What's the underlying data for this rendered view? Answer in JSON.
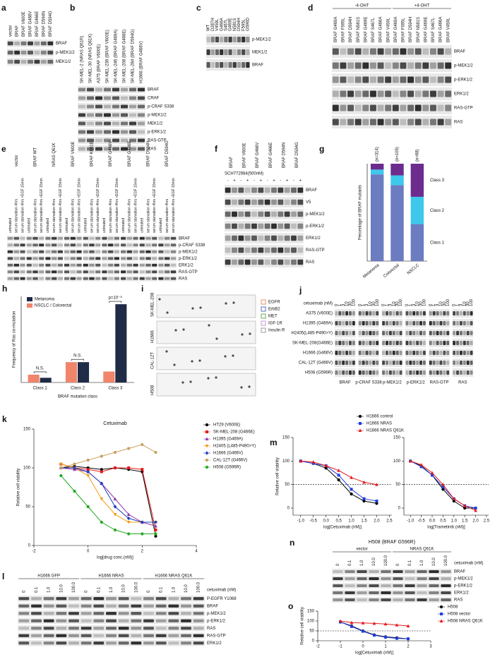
{
  "panels": {
    "a": {
      "letter": "a",
      "lanes": [
        "vector",
        "BRAF",
        "BRAF V600E",
        "BRAF G466V",
        "BRAF G466E",
        "BRAF D594N",
        "BRAF D594G"
      ],
      "rows": [
        "BRAF",
        "p-MEK1/2",
        "MEK1/2"
      ]
    },
    "b": {
      "letter": "b",
      "lanes": [
        "SK-MEL-2 (NRAS Q61R)",
        "SK-MEL-30 (NRAS Q61K)",
        "A375 (BRAF V600E)",
        "SK-MEL-239 (BRAF V600E)",
        "SK-MEL-246 (BRAF G469A)",
        "SK-MEL-208 (BRAF G466E)",
        "SK-MEL-284 (BRAF D594G)",
        "H1666 (BRAF G466V)"
      ],
      "rows": [
        "BRAF",
        "CRAF",
        "p-CRAF S338",
        "p-MEK1/2",
        "MEK1/2",
        "p-ERK1/2",
        "RAS-GTP",
        "RAS"
      ]
    },
    "c": {
      "letter": "c",
      "lanes": [
        "WT",
        "D287H",
        "V459L",
        "G466A",
        "S467L",
        "G469E",
        "N581S",
        "D594H",
        "F595L",
        "G596D"
      ],
      "rows": [
        "p-MEK1/2",
        "MEK1/2",
        "BRAF"
      ]
    },
    "d": {
      "letter": "d",
      "groups": [
        {
          "name": "-4-OHT",
          "lanes": [
            "BRAF G469A",
            "BRAF F595L",
            "BRAF D594H",
            "BRAF N581S",
            "BRAF G469E",
            "BRAF S467L",
            "BRAF G466A",
            "BRAF V459L"
          ]
        },
        {
          "name": "+4-OHT",
          "lanes": [
            "BRAF G469A",
            "BRAF F595L",
            "BRAF D594H",
            "BRAF N581S",
            "BRAF G469E",
            "BRAF S467L",
            "BRAF G466A",
            "BRAF V459L"
          ]
        }
      ],
      "rows": [
        "BRAF",
        "p-MEK1/2",
        "p-ERK1/2",
        "ERK1/2",
        "RAS-GTP",
        "RAS"
      ]
    },
    "e": {
      "letter": "e",
      "groups": [
        {
          "name": "vector",
          "lanes": [
            "untreated",
            "serum starvation 4hrs",
            "serum starvation 4hrs +EGF 15min"
          ]
        },
        {
          "name": "BRAF WT",
          "lanes": [
            "untreated",
            "serum starvation 4hrs",
            "serum starvation 4hrs +EGF 15min"
          ]
        },
        {
          "name": "NRAS Q61K",
          "lanes": [
            "untreated",
            "serum starvation 4hrs",
            "serum starvation 4hrs +EGF 15min"
          ]
        },
        {
          "name": "BRAF V600E",
          "lanes": [
            "untreated",
            "serum starvation 4hrs",
            "serum starvation 4hrs +EGF 15min"
          ]
        },
        {
          "name": "BRAF K601E",
          "lanes": [
            "untreated",
            "serum starvation 4hrs",
            "serum starvation 4hrs +EGF 15min"
          ]
        },
        {
          "name": "BRAF G466V",
          "lanes": [
            "untreated",
            "serum starvation 4hrs",
            "serum starvation 4hrs +EGF 15min"
          ]
        },
        {
          "name": "BRAF G466E",
          "lanes": [
            "untreated",
            "serum starvation 4hrs",
            "serum starvation 4hrs +EGF 15min"
          ]
        },
        {
          "name": "BRAF D594N",
          "lanes": [
            "untreated",
            "serum starvation 4hrs",
            "serum starvation 4hrs +EGF 15min"
          ]
        },
        {
          "name": "BRAF D594G",
          "lanes": [
            "untreated",
            "serum starvation 4hrs",
            "serum starvation 4hrs +EGF 15min"
          ]
        }
      ],
      "rows": [
        "BRAF",
        "p-CRAF S338",
        "p-MEK1/2",
        "p-ERK1/2",
        "ERK1/2",
        "RAS-GTP",
        "RAS"
      ]
    },
    "f": {
      "letter": "f",
      "treatment": "SCH772984(500nM)",
      "groups": [
        {
          "name": "BRAF",
          "lanes": [
            "-",
            "+"
          ]
        },
        {
          "name": "BRAF V600E",
          "lanes": [
            "-",
            "+"
          ]
        },
        {
          "name": "BRAF G466V",
          "lanes": [
            "-",
            "+"
          ]
        },
        {
          "name": "BRAF G466E",
          "lanes": [
            "-",
            "+"
          ]
        },
        {
          "name": "BRAF D594N",
          "lanes": [
            "-",
            "+"
          ]
        },
        {
          "name": "BRAF D594G",
          "lanes": [
            "-",
            "+"
          ]
        }
      ],
      "rows": [
        "BRAF",
        "V5",
        "p-MEK1/2",
        "p-ERK1/2",
        "ERK1/2",
        "RAS-GTP",
        "RAS"
      ]
    },
    "i": {
      "letter": "i",
      "samples": [
        "SK-MEL-208",
        "H1666",
        "CAL-12T",
        "H508"
      ],
      "legend": [
        {
          "name": "EGFR",
          "color": "#e8906a"
        },
        {
          "name": "ErbB2",
          "color": "#5a6cc4"
        },
        {
          "name": "MET",
          "color": "#6aaa5a"
        },
        {
          "name": "IGF-1R",
          "color": "#c79ad6"
        },
        {
          "name": "Insulin R",
          "color": "#9a9a9a"
        }
      ]
    },
    "j": {
      "letter": "j",
      "treatment": "cetuximab (nM)",
      "doses": [
        "0",
        "1",
        "3",
        "10",
        "30",
        "100"
      ],
      "cell_lines": [
        "A375 (V600E)",
        "H1395 (G469A)",
        "H2405(L485-P490>Y)",
        "SK-MEL-208(G466E)",
        "H1666 (G466V)",
        "CAL-12T (G466V)",
        "H508 (G596R)"
      ],
      "markers": [
        "BRAF",
        "p-CRAF S338",
        "p-MEK1/2",
        "p-ERK1/2",
        "RAS-GTP",
        "RAS"
      ]
    },
    "l": {
      "letter": "l",
      "treatment": "cetuximab (nM)",
      "groups": [
        {
          "name": "H1666 GFP",
          "lanes": [
            "0",
            "0.1",
            "1.0",
            "10.0",
            "100.0"
          ]
        },
        {
          "name": "H1666 NRAS",
          "lanes": [
            "0",
            "0.1",
            "1.0",
            "10.0",
            "100.0"
          ]
        },
        {
          "name": "H1666 NRAS Q61K",
          "lanes": [
            "0",
            "0.1",
            "1.0",
            "10.0",
            "100.0"
          ]
        }
      ],
      "rows": [
        "P-EGFR Y1068",
        "BRAF",
        "p-MEK1/2",
        "p-ERK1/2",
        "RAS",
        "RAS-GTP",
        "ERK1/2"
      ]
    },
    "n": {
      "letter": "n",
      "title": "H508 (BRAF G596R)",
      "treatment": "cetuximab (nM)",
      "groups": [
        {
          "name": "vector",
          "lanes": [
            "0",
            "0.1",
            "1.0",
            "10.0",
            "100.0"
          ]
        },
        {
          "name": "NRAS Q61K",
          "lanes": [
            "0",
            "0.1",
            "1.0",
            "10.0",
            "100.0"
          ]
        }
      ],
      "rows": [
        "BRAF",
        "p-MEK1/2",
        "p-ERK1/2",
        "ERK1/2",
        "RAS"
      ]
    }
  },
  "chart_data": [
    {
      "panel": "g",
      "type": "stacked_bar",
      "ylabel": "Percentage of BRAF mutants",
      "ylim": [
        0,
        100
      ],
      "categories": [
        "Melanoma",
        "Colorectal",
        "NSCLC"
      ],
      "n_labels": [
        "(n=314)",
        "(n=105)",
        "(n=68)"
      ],
      "series": [
        {
          "name": "Class 1",
          "color": "#6b7cc0",
          "values": [
            89,
            78,
            38
          ]
        },
        {
          "name": "Class 2",
          "color": "#3dc8ec",
          "values": [
            5,
            10,
            28
          ]
        },
        {
          "name": "Class 3",
          "color": "#6b2c8e",
          "values": [
            6,
            12,
            34
          ]
        }
      ]
    },
    {
      "panel": "h",
      "type": "bar",
      "ylabel": "Frequency of Ras co-mutation",
      "xlabel": "BRAF mutation class",
      "ylim": [
        0,
        110
      ],
      "categories": [
        "Class 1",
        "Class 2",
        "Class 3"
      ],
      "annotations": [
        "N.S.",
        "N.S.",
        "p=10⁻⁸"
      ],
      "legend": "top-left",
      "series": [
        {
          "name": "Melanoma",
          "color": "#1f2b47",
          "values": [
            6,
            26,
            100
          ]
        },
        {
          "name": "NSCLC / Colorectal",
          "color": "#f0856c",
          "values": [
            10,
            26,
            14
          ]
        }
      ]
    },
    {
      "panel": "k",
      "type": "line",
      "title": "Cetuximab",
      "xlabel": "log[drug conc.(nM)]",
      "ylabel": "Relative cell viability",
      "xlim": [
        -2,
        4
      ],
      "xticks": [
        -2,
        0,
        2,
        4
      ],
      "ylim": [
        0,
        150
      ],
      "yticks": [
        0,
        50,
        100,
        150
      ],
      "legend": "right",
      "x": [
        -1,
        -0.5,
        0,
        0.5,
        1,
        1.5,
        2,
        2.5
      ],
      "series": [
        {
          "name": "HT29 (V600E)",
          "color": "#000000",
          "marker": "circle",
          "values": [
            100,
            102,
            100,
            98,
            100,
            98,
            95,
            12
          ]
        },
        {
          "name": "SK-MEL-208 (G466E)",
          "color": "#e41a1c",
          "marker": "square",
          "values": [
            105,
            100,
            98,
            95,
            100,
            100,
            98,
            20
          ]
        },
        {
          "name": "H1395 (G469A)",
          "color": "#8e3aa8",
          "marker": "triangle",
          "values": [
            100,
            98,
            95,
            80,
            60,
            40,
            30,
            25
          ]
        },
        {
          "name": "H2405 (L485-P490>Y)",
          "color": "#f39c12",
          "marker": "triangle-down",
          "values": [
            105,
            100,
            90,
            60,
            40,
            30,
            30,
            30
          ]
        },
        {
          "name": "H1666 (G466V)",
          "color": "#1f3fbf",
          "marker": "diamond",
          "values": [
            100,
            100,
            95,
            80,
            50,
            35,
            30,
            30
          ]
        },
        {
          "name": "CAL-12T (G466V)",
          "color": "#c8a060",
          "marker": "circle",
          "values": [
            100,
            105,
            110,
            115,
            120,
            125,
            130,
            120
          ]
        },
        {
          "name": "H508 (G596R)",
          "color": "#22aa22",
          "marker": "circle",
          "values": [
            90,
            70,
            50,
            30,
            20,
            15,
            15,
            15
          ]
        }
      ]
    },
    {
      "panel": "m",
      "type": "line",
      "xlabel": "log[Cetuximab (nM)]",
      "ylabel": "Relative cell viability",
      "xlim": [
        -1.3,
        2.6
      ],
      "xticks": [
        {
          "value": -1,
          "label": "-1.0"
        },
        -0.5,
        {
          "value": 0,
          "label": "0.0"
        },
        0.5,
        {
          "value": 1,
          "label": "1.0"
        },
        1.5,
        {
          "value": 2,
          "label": "2.0"
        },
        2.5
      ],
      "ylim": [
        -15,
        150
      ],
      "yticks": [
        0,
        50,
        100,
        150
      ],
      "reference_line": 50,
      "legend": "above",
      "x": [
        -1,
        -0.5,
        0,
        0.5,
        1,
        1.5,
        2
      ],
      "series": [
        {
          "name": "H1666 control",
          "color": "#000000",
          "marker": "circle",
          "values": [
            100,
            95,
            85,
            60,
            30,
            15,
            10
          ]
        },
        {
          "name": "H1666 NRAS",
          "color": "#1f3fdf",
          "marker": "square",
          "values": [
            100,
            95,
            90,
            70,
            40,
            20,
            15
          ]
        },
        {
          "name": "H1666 NRAS Q61K",
          "color": "#e41a1c",
          "marker": "triangle",
          "values": [
            100,
            98,
            90,
            80,
            65,
            55,
            50
          ]
        }
      ]
    },
    {
      "type": "line",
      "xlabel": "log[Trametinib (nM)]",
      "xlim": [
        -1.3,
        2.6
      ],
      "xticks": [
        {
          "value": -1,
          "label": "-1.0"
        },
        -0.5,
        {
          "value": 0,
          "label": "0.0"
        },
        0.5,
        {
          "value": 1,
          "label": "1.0"
        },
        1.5,
        {
          "value": 2,
          "label": "2.0"
        },
        2.5
      ],
      "ylim": [
        -15,
        150
      ],
      "yticks": [
        0,
        50,
        100,
        150
      ],
      "reference_line": 50,
      "x": [
        -1,
        -0.5,
        0,
        0.5,
        1,
        1.5,
        2
      ],
      "series": [
        {
          "color": "#000000",
          "marker": "circle",
          "values": [
            100,
            90,
            70,
            40,
            15,
            0,
            0
          ]
        },
        {
          "color": "#1f3fdf",
          "marker": "square",
          "values": [
            100,
            88,
            70,
            45,
            20,
            5,
            0
          ]
        },
        {
          "color": "#e41a1c",
          "marker": "triangle",
          "values": [
            100,
            92,
            75,
            50,
            20,
            5,
            -5
          ]
        }
      ]
    },
    {
      "panel": "o",
      "type": "line",
      "xlabel": "log[Cetuximab (nM)]",
      "ylabel": "Relative cell viability",
      "xlim": [
        -2,
        3
      ],
      "xticks": [
        -2,
        -1,
        0,
        1,
        2,
        3
      ],
      "ylim": [
        0,
        150
      ],
      "yticks": [
        0,
        50,
        100,
        150
      ],
      "reference_line": 50,
      "legend": "right",
      "x": [
        -1,
        -0.5,
        0,
        0.5,
        1,
        1.5,
        2
      ],
      "series": [
        {
          "name": "H508",
          "color": "#000000",
          "marker": "circle",
          "values": [
            95,
            75,
            50,
            30,
            20,
            15,
            10
          ]
        },
        {
          "name": "H508 vector",
          "color": "#1f3fdf",
          "marker": "square",
          "values": [
            95,
            72,
            48,
            28,
            18,
            12,
            10
          ]
        },
        {
          "name": "H508 NRAS Q61K",
          "color": "#e41a1c",
          "marker": "triangle",
          "values": [
            100,
            92,
            90,
            88,
            85,
            80,
            75
          ]
        }
      ]
    }
  ]
}
